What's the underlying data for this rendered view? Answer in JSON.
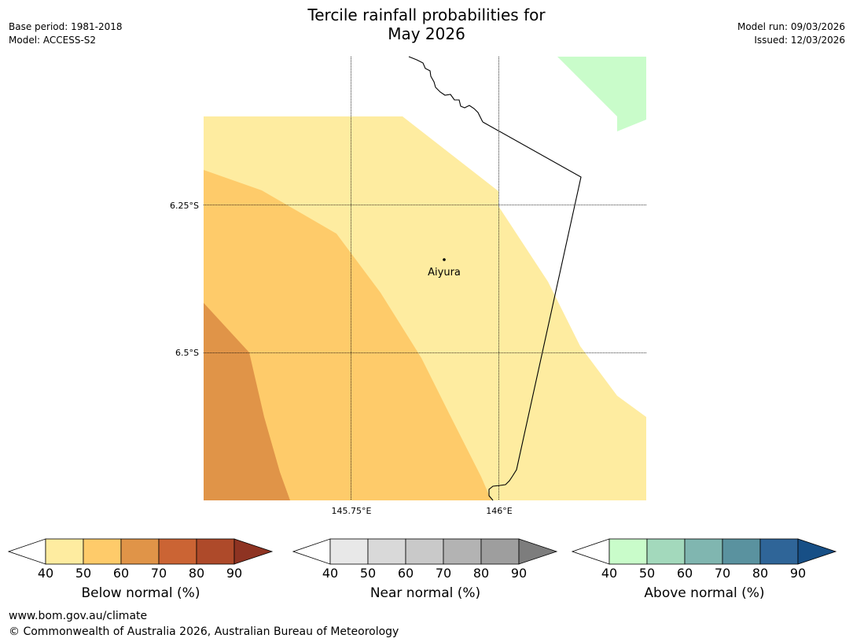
{
  "header": {
    "title_line1": "Tercile rainfall probabilities for",
    "title_line2": "May 2026",
    "base_period": "Base period: 1981-2018",
    "model": "Model: ACCESS-S2",
    "model_run": "Model run: 09/03/2026",
    "issued": "Issued: 12/03/2026"
  },
  "map": {
    "lat_labels": [
      "6.25°S",
      "6.5°S"
    ],
    "lon_labels": [
      "145.75°E",
      "146°E"
    ],
    "place": "Aiyura",
    "colors": {
      "bn_40": "#feeca0",
      "bn_50": "#fecb6a",
      "bn_60": "#e09448",
      "an_40": "#c9fcca",
      "coast": "#000000"
    }
  },
  "colorbars": [
    {
      "label": "Below normal (%)",
      "ticks": [
        "40",
        "50",
        "60",
        "70",
        "80",
        "90"
      ],
      "colors": [
        "#feeca0",
        "#fecb6a",
        "#e09448",
        "#cb6434",
        "#ae4a2a",
        "#8e3322"
      ]
    },
    {
      "label": "Near normal (%)",
      "ticks": [
        "40",
        "50",
        "60",
        "70",
        "80",
        "90"
      ],
      "colors": [
        "#e8e8e8",
        "#d9d9d9",
        "#c9c9c9",
        "#b3b3b3",
        "#9e9e9e",
        "#7d7d7d"
      ]
    },
    {
      "label": "Above normal (%)",
      "ticks": [
        "40",
        "50",
        "60",
        "70",
        "80",
        "90"
      ],
      "colors": [
        "#c9fcca",
        "#a3d9bc",
        "#80b6b0",
        "#5a929f",
        "#2f6598",
        "#174f86"
      ]
    }
  ],
  "footer": {
    "website": "www.bom.gov.au/climate",
    "copyright": "© Commonwealth of Australia 2026, Australian Bureau of Meteorology"
  }
}
